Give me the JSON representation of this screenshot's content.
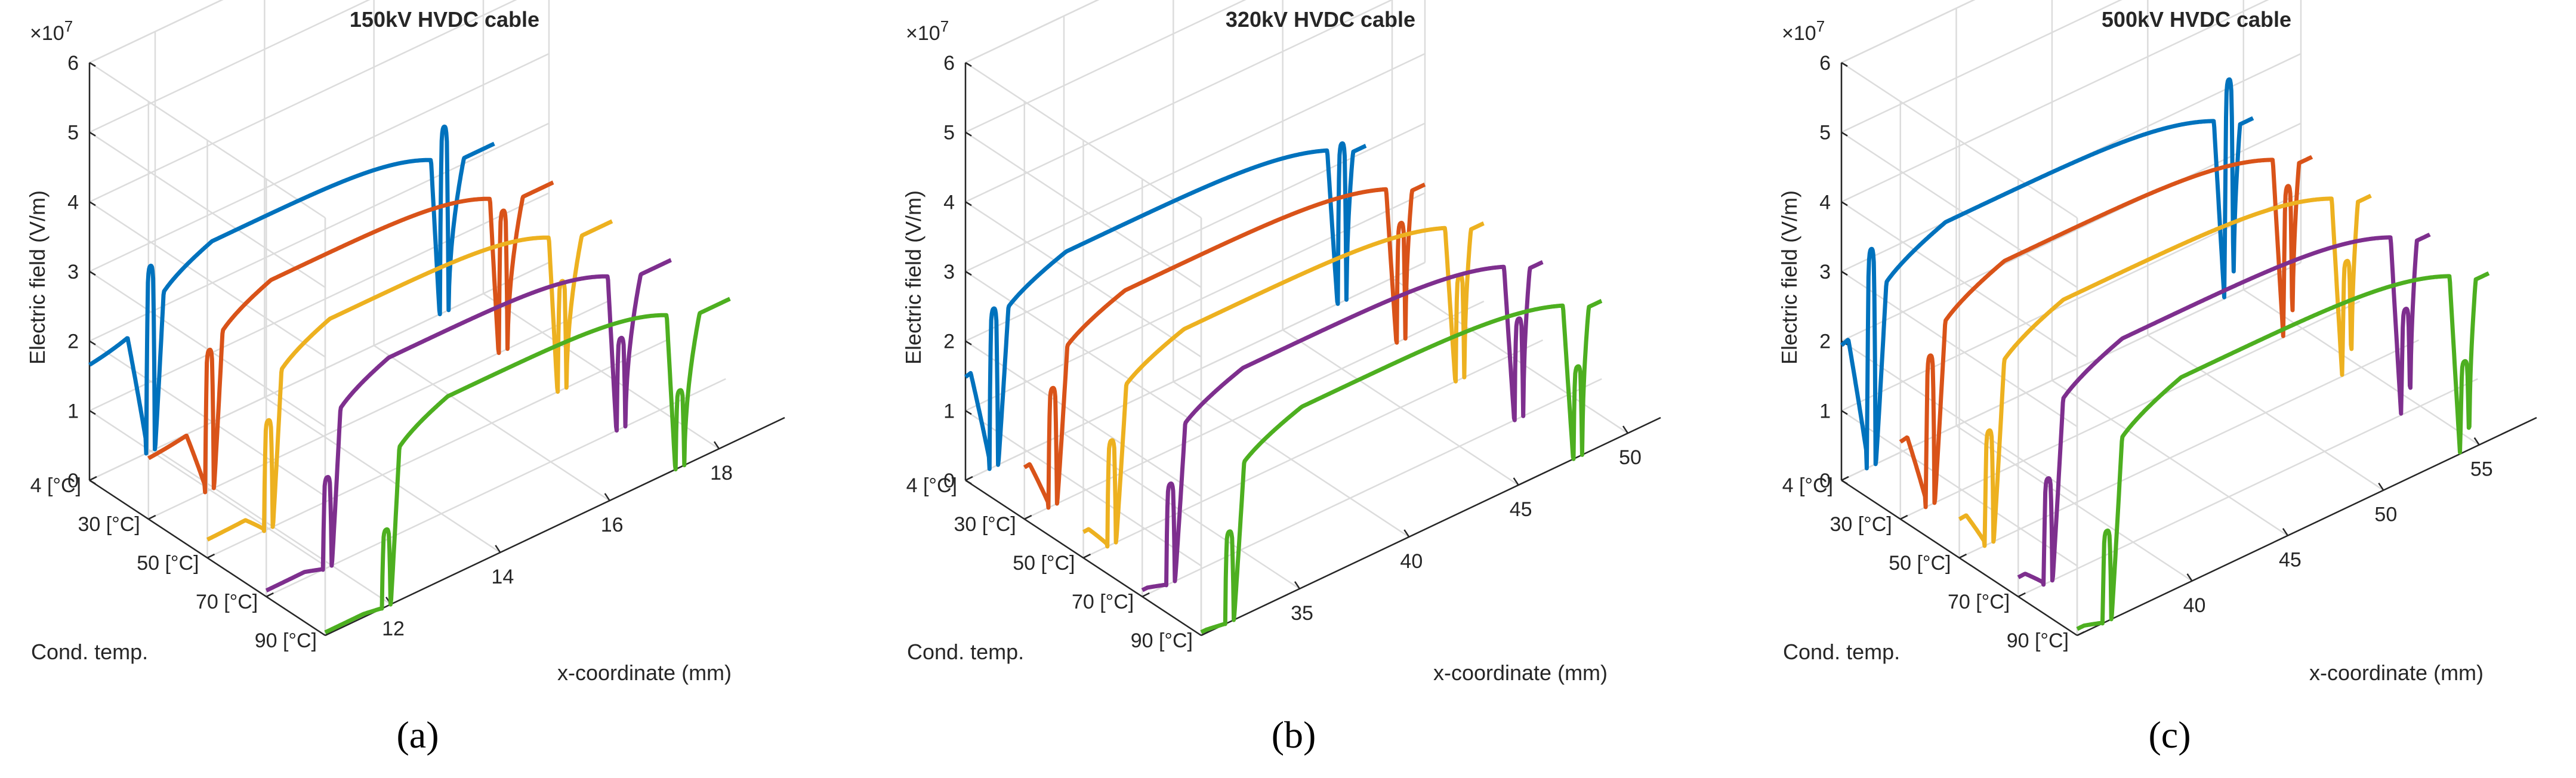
{
  "figure": {
    "captions": [
      "(a)",
      "(b)",
      "(c)"
    ]
  },
  "chart_data": [
    {
      "type": "line3d",
      "title": "150kV HVDC cable",
      "zlabel": "Electric field (V/m)",
      "xlabel": "x-coordinate (mm)",
      "ylabel": "Cond. temp.",
      "exponent_label": "×10",
      "exponent": "7",
      "z_ticks": [
        "0",
        "1",
        "2",
        "3",
        "4",
        "5",
        "6"
      ],
      "zlim": [
        0,
        6
      ],
      "x_ticks": [
        "12",
        "14",
        "16",
        "18"
      ],
      "xlim": [
        10.8,
        19.2
      ],
      "y_ticks": [
        "4 [°C]",
        "30 [°C]",
        "50 [°C]",
        "70 [°C]",
        "90 [°C]"
      ],
      "series": [
        {
          "name": "4 [°C]",
          "color": "#0072BD",
          "x_start": 10.8,
          "x_inner": 12.0,
          "x_outer": 17.2,
          "x_end": 18.2,
          "base_field": 1.9,
          "outer_field": 2.6,
          "peak": 4.1
        },
        {
          "name": "30 [°C]",
          "color": "#D95319",
          "x_start": 10.8,
          "x_inner": 12.0,
          "x_outer": 17.2,
          "x_end": 18.2,
          "base_field": 1.0,
          "outer_field": 2.6,
          "peak": 3.1
        },
        {
          "name": "50 [°C]",
          "color": "#EDB120",
          "x_start": 10.8,
          "x_inner": 12.0,
          "x_outer": 17.2,
          "x_end": 18.2,
          "base_field": 0.3,
          "outer_field": 2.6,
          "peak": 2.4
        },
        {
          "name": "70 [°C]",
          "color": "#7E2F8E",
          "x_start": 10.8,
          "x_inner": 12.0,
          "x_outer": 17.2,
          "x_end": 18.2,
          "base_field": 0.1,
          "outer_field": 2.6,
          "peak": 2.0
        },
        {
          "name": "90 [°C]",
          "color": "#4DAF20",
          "x_start": 10.8,
          "x_inner": 12.0,
          "x_outer": 17.2,
          "x_end": 18.2,
          "base_field": 0.05,
          "outer_field": 2.6,
          "peak": 1.7
        }
      ]
    },
    {
      "type": "line3d",
      "title": "320kV HVDC cable",
      "zlabel": "Electric field (V/m)",
      "xlabel": "x-coordinate (mm)",
      "ylabel": "Cond. temp.",
      "exponent_label": "×10",
      "exponent": "7",
      "z_ticks": [
        "0",
        "1",
        "2",
        "3",
        "4",
        "5",
        "6"
      ],
      "zlim": [
        0,
        6
      ],
      "x_ticks": [
        "35",
        "40",
        "45",
        "50"
      ],
      "xlim": [
        30.5,
        51.5
      ],
      "y_ticks": [
        "4 [°C]",
        "30 [°C]",
        "50 [°C]",
        "70 [°C]",
        "90 [°C]"
      ],
      "series": [
        {
          "name": "4 [°C]",
          "color": "#0072BD",
          "x_start": 30.5,
          "x_inner": 32.0,
          "x_outer": 47.5,
          "x_end": 48.8,
          "base_field": 1.6,
          "outer_field": 2.6,
          "peak": 3.5
        },
        {
          "name": "30 [°C]",
          "color": "#D95319",
          "x_start": 30.5,
          "x_inner": 32.0,
          "x_outer": 47.5,
          "x_end": 48.8,
          "base_field": 0.8,
          "outer_field": 2.6,
          "peak": 2.6
        },
        {
          "name": "50 [°C]",
          "color": "#EDB120",
          "x_start": 30.5,
          "x_inner": 32.0,
          "x_outer": 47.5,
          "x_end": 48.8,
          "base_field": 0.4,
          "outer_field": 2.6,
          "peak": 2.3
        },
        {
          "name": "70 [°C]",
          "color": "#7E2F8E",
          "x_start": 30.5,
          "x_inner": 32.0,
          "x_outer": 47.5,
          "x_end": 48.8,
          "base_field": 0.1,
          "outer_field": 2.6,
          "peak": 2.2
        },
        {
          "name": "90 [°C]",
          "color": "#4DAF20",
          "x_start": 30.5,
          "x_inner": 32.0,
          "x_outer": 47.5,
          "x_end": 48.8,
          "base_field": 0.05,
          "outer_field": 2.6,
          "peak": 2.0
        }
      ]
    },
    {
      "type": "line3d",
      "title": "500kV HVDC cable",
      "zlabel": "Electric field (V/m)",
      "xlabel": "x-coordinate (mm)",
      "ylabel": "Cond. temp.",
      "exponent_label": "×10",
      "exponent": "7",
      "z_ticks": [
        "0",
        "1",
        "2",
        "3",
        "4",
        "5",
        "6"
      ],
      "zlim": [
        0,
        6
      ],
      "x_ticks": [
        "40",
        "45",
        "50",
        "55"
      ],
      "xlim": [
        34.0,
        58.0
      ],
      "y_ticks": [
        "4 [°C]",
        "30 [°C]",
        "50 [°C]",
        "70 [°C]",
        "90 [°C]"
      ],
      "series": [
        {
          "name": "4 [°C]",
          "color": "#0072BD",
          "x_start": 34.0,
          "x_inner": 35.8,
          "x_outer": 54.0,
          "x_end": 55.5,
          "base_field": 2.1,
          "outer_field": 3.0,
          "peak": 4.8
        },
        {
          "name": "30 [°C]",
          "color": "#D95319",
          "x_start": 34.0,
          "x_inner": 35.8,
          "x_outer": 54.0,
          "x_end": 55.5,
          "base_field": 1.2,
          "outer_field": 3.0,
          "peak": 3.3
        },
        {
          "name": "50 [°C]",
          "color": "#EDB120",
          "x_start": 34.0,
          "x_inner": 35.8,
          "x_outer": 54.0,
          "x_end": 55.5,
          "base_field": 0.6,
          "outer_field": 3.0,
          "peak": 2.5
        },
        {
          "name": "70 [°C]",
          "color": "#7E2F8E",
          "x_start": 34.0,
          "x_inner": 35.8,
          "x_outer": 54.0,
          "x_end": 55.5,
          "base_field": 0.3,
          "outer_field": 3.0,
          "peak": 2.3
        },
        {
          "name": "90 [°C]",
          "color": "#4DAF20",
          "x_start": 34.0,
          "x_inner": 35.8,
          "x_outer": 54.0,
          "x_end": 55.5,
          "base_field": 0.1,
          "outer_field": 3.0,
          "peak": 2.0
        }
      ]
    }
  ]
}
